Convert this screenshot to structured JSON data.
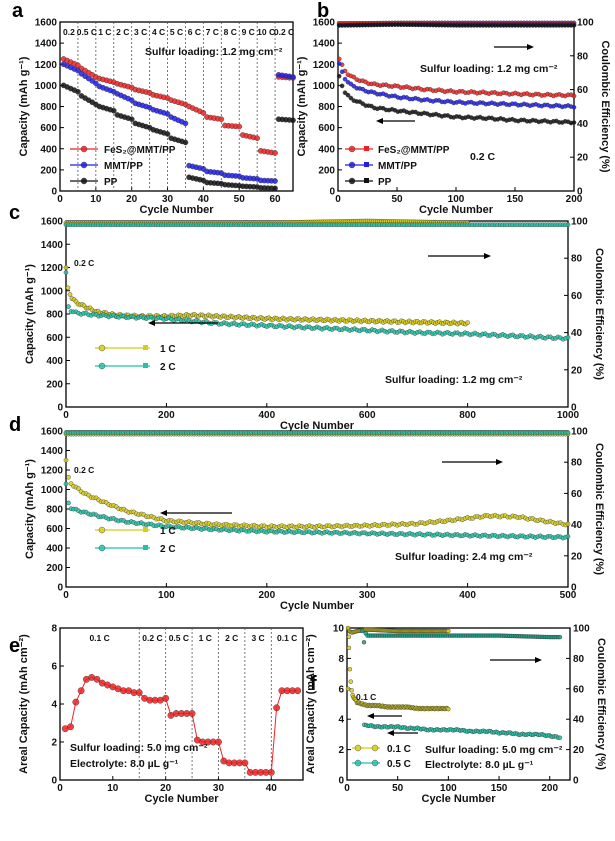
{
  "panels": {
    "a": {
      "label": "a",
      "xlabel": "Cycle Number",
      "ylabel": "Capacity (mAh g⁻¹)",
      "annotation": "Sulfur loading: 1.2 mg cm⁻²",
      "rates": [
        "0.2",
        "0.5 C",
        "1 C",
        "2 C",
        "3 C",
        "4 C",
        "5 C",
        "6 C",
        "7 C",
        "8 C",
        "9 C",
        "10 C",
        "0.2 C"
      ],
      "legend": [
        "FeS₂@MMT/PP",
        "MMT/PP",
        "PP"
      ]
    },
    "b": {
      "label": "b",
      "xlabel": "Cycle Number",
      "ylabel": "Capacity (mAh g⁻¹)",
      "ylabel2": "Coulombic Efficiency (%)",
      "annotation": "Sulfur loading: 1.2 mg cm⁻²",
      "annotation2": "0.2 C",
      "legend": [
        "FeS₂@MMT/PP",
        "MMT/PP",
        "PP"
      ]
    },
    "c": {
      "label": "c",
      "xlabel": "Cycle Number",
      "ylabel": "Capacity (mAh g⁻¹)",
      "ylabel2": "Coulombic Efficiency (%)",
      "annotation": "Sulfur loading: 1.2 mg cm⁻²",
      "annotation2": "0.2 C",
      "legend": [
        "1 C",
        "2 C"
      ]
    },
    "d": {
      "label": "d",
      "xlabel": "Cycle Number",
      "ylabel": "Capacity (mAh g⁻¹)",
      "ylabel2": "Coulombic Efficiency (%)",
      "annotation": "Sulfur loading: 2.4 mg cm⁻²",
      "annotation2": "0.2 C",
      "legend": [
        "1 C",
        "2 C"
      ]
    },
    "e": {
      "label": "e",
      "xlabel": "Cycle Number",
      "ylabel": "Areal Capacity (mAh cm⁻²)",
      "annotation": "Sulfur loading: 5.0 mg cm⁻²",
      "annotation2": "Electrolyte: 8.0 µL g⁻¹",
      "rates": [
        "0.1 C",
        "0.2 C",
        "0.5 C",
        "1 C",
        "2 C",
        "3 C",
        "0.1 C"
      ]
    },
    "f": {
      "label": "f",
      "xlabel": "Cycle Number",
      "ylabel": "Areal Capacity (mAh cm⁻²)",
      "ylabel2": "Coulombic Efficiency (%)",
      "annotation": "Sulfur loading: 5.0 mg cm⁻²",
      "annotation2": "Electrolyte: 8.0 µL g⁻¹",
      "annotation3": "0.1 C",
      "legend": [
        "0.1 C",
        "0.5 C"
      ]
    }
  },
  "colors": {
    "red": "#ee2222",
    "blue": "#1f1fe6",
    "black": "#111111",
    "yellow": "#d8cc1a",
    "teal": "#22c4a8",
    "tealdark": "#1a9e86"
  },
  "chart_data": [
    {
      "panel": "a",
      "type": "scatter",
      "xlim": [
        0,
        65
      ],
      "ylim": [
        0,
        1600
      ],
      "xticks": [
        0,
        10,
        20,
        30,
        40,
        50,
        60
      ],
      "yticks": [
        0,
        200,
        400,
        600,
        800,
        1000,
        1200,
        1400,
        1600
      ],
      "rate_boundaries": [
        5,
        10,
        15,
        20,
        25,
        30,
        35,
        40,
        45,
        50,
        55,
        60
      ],
      "series": [
        {
          "name": "FeS₂@MMT/PP",
          "color": "red",
          "segments": [
            [
              1250,
              1190
            ],
            [
              1160,
              1080
            ],
            [
              1065,
              1030
            ],
            [
              1015,
              980
            ],
            [
              960,
              930
            ],
            [
              910,
              880
            ],
            [
              860,
              820
            ],
            [
              800,
              740
            ],
            [
              700,
              680
            ],
            [
              620,
              610
            ],
            [
              530,
              500
            ],
            [
              380,
              360
            ],
            [
              1080,
              1070
            ]
          ]
        },
        {
          "name": "MMT/PP",
          "color": "blue",
          "segments": [
            [
              1200,
              1140
            ],
            [
              1110,
              1020
            ],
            [
              990,
              940
            ],
            [
              920,
              860
            ],
            [
              830,
              790
            ],
            [
              770,
              730
            ],
            [
              700,
              640
            ],
            [
              240,
              210
            ],
            [
              185,
              170
            ],
            [
              150,
              140
            ],
            [
              125,
              115
            ],
            [
              100,
              95
            ],
            [
              1100,
              1080
            ]
          ]
        },
        {
          "name": "PP",
          "color": "black",
          "segments": [
            [
              1000,
              940
            ],
            [
              900,
              820
            ],
            [
              800,
              760
            ],
            [
              720,
              680
            ],
            [
              640,
              600
            ],
            [
              580,
              540
            ],
            [
              500,
              460
            ],
            [
              130,
              100
            ],
            [
              80,
              70
            ],
            [
              60,
              50
            ],
            [
              45,
              38
            ],
            [
              30,
              25
            ],
            [
              680,
              670
            ]
          ]
        }
      ]
    },
    {
      "panel": "b",
      "type": "scatter",
      "xlim": [
        0,
        200
      ],
      "ylim": [
        0,
        1600
      ],
      "y2lim": [
        0,
        100
      ],
      "xticks": [
        0,
        50,
        100,
        150,
        200
      ],
      "yticks": [
        0,
        200,
        400,
        600,
        800,
        1000,
        1200,
        1400,
        1600
      ],
      "y2ticks": [
        0,
        20,
        40,
        60,
        80,
        100
      ],
      "series": [
        {
          "name": "FeS₂@MMT/PP",
          "color": "red",
          "x": [
            1,
            5,
            10,
            20,
            30,
            50,
            75,
            100,
            125,
            150,
            175,
            200
          ],
          "y": [
            1250,
            1150,
            1090,
            1040,
            1010,
            990,
            960,
            940,
            930,
            920,
            910,
            905
          ]
        },
        {
          "name": "MMT/PP",
          "color": "blue",
          "x": [
            1,
            5,
            10,
            20,
            30,
            50,
            75,
            100,
            125,
            150,
            175,
            200
          ],
          "y": [
            1200,
            1080,
            1010,
            960,
            930,
            890,
            860,
            840,
            830,
            820,
            810,
            800
          ]
        },
        {
          "name": "PP",
          "color": "black",
          "x": [
            1,
            5,
            10,
            20,
            30,
            50,
            75,
            100,
            125,
            150,
            175,
            200
          ],
          "y": [
            1080,
            950,
            880,
            830,
            790,
            760,
            730,
            700,
            690,
            670,
            660,
            650
          ]
        },
        {
          "name": "FeS₂@MMT/PP CE",
          "color": "red",
          "axis": "y2",
          "x": [
            1,
            50,
            100,
            150,
            200
          ],
          "y": [
            99,
            99.5,
            99.5,
            99.5,
            99.5
          ]
        },
        {
          "name": "MMT/PP CE",
          "color": "blue",
          "axis": "y2",
          "x": [
            1,
            50,
            100,
            150,
            200
          ],
          "y": [
            98,
            98.5,
            98.5,
            98.5,
            98.5
          ]
        },
        {
          "name": "PP CE",
          "color": "black",
          "axis": "y2",
          "x": [
            1,
            50,
            100,
            150,
            200
          ],
          "y": [
            98,
            98.5,
            98,
            98,
            98
          ]
        }
      ]
    },
    {
      "panel": "c",
      "type": "scatter",
      "xlim": [
        0,
        1000
      ],
      "ylim": [
        0,
        1600
      ],
      "y2lim": [
        0,
        100
      ],
      "xticks": [
        0,
        200,
        400,
        600,
        800,
        1000
      ],
      "yticks": [
        0,
        200,
        400,
        600,
        800,
        1000,
        1200,
        1400,
        1600
      ],
      "y2ticks": [
        0,
        20,
        40,
        60,
        80,
        100
      ],
      "series": [
        {
          "name": "1 C",
          "color": "yellow",
          "x": [
            0,
            2,
            5,
            10,
            20,
            40,
            60,
            100,
            150,
            200,
            250,
            300,
            400,
            500,
            600,
            700,
            800
          ],
          "y": [
            1200,
            1050,
            1000,
            950,
            900,
            860,
            820,
            790,
            780,
            780,
            790,
            780,
            760,
            750,
            740,
            730,
            720
          ]
        },
        {
          "name": "2 C",
          "color": "teal",
          "x": [
            0,
            2,
            5,
            10,
            20,
            40,
            60,
            100,
            150,
            200,
            250,
            300,
            400,
            500,
            600,
            700,
            800,
            900,
            1000
          ],
          "y": [
            1150,
            900,
            860,
            830,
            810,
            800,
            790,
            780,
            770,
            760,
            740,
            720,
            700,
            680,
            660,
            640,
            630,
            610,
            590
          ]
        },
        {
          "name": "1 C CE",
          "color": "yellow",
          "axis": "y2",
          "x": [
            0,
            200,
            400,
            600,
            800
          ],
          "y": [
            99,
            99,
            99,
            100,
            99
          ]
        },
        {
          "name": "2 C CE",
          "color": "teal",
          "axis": "y2",
          "x": [
            0,
            200,
            400,
            600,
            800,
            1000
          ],
          "y": [
            98,
            98,
            98,
            98,
            98,
            98
          ]
        }
      ]
    },
    {
      "panel": "d",
      "type": "scatter",
      "xlim": [
        0,
        500
      ],
      "ylim": [
        0,
        1600
      ],
      "y2lim": [
        0,
        100
      ],
      "xticks": [
        0,
        100,
        200,
        300,
        400,
        500
      ],
      "yticks": [
        0,
        200,
        400,
        600,
        800,
        1000,
        1200,
        1400,
        1600
      ],
      "y2ticks": [
        0,
        20,
        40,
        60,
        80,
        100
      ],
      "series": [
        {
          "name": "1 C",
          "color": "yellow",
          "x": [
            0,
            3,
            10,
            20,
            40,
            60,
            80,
            100,
            150,
            200,
            250,
            300,
            350,
            380,
            420,
            450,
            480,
            500
          ],
          "y": [
            1300,
            1080,
            1020,
            950,
            860,
            780,
            730,
            680,
            640,
            620,
            620,
            630,
            650,
            680,
            730,
            720,
            670,
            640
          ]
        },
        {
          "name": "2 C",
          "color": "teal",
          "x": [
            0,
            3,
            10,
            20,
            40,
            60,
            100,
            150,
            200,
            250,
            300,
            350,
            400,
            450,
            500
          ],
          "y": [
            1050,
            820,
            790,
            760,
            710,
            670,
            620,
            590,
            570,
            560,
            550,
            540,
            530,
            520,
            510
          ]
        },
        {
          "name": "1 C CE",
          "color": "yellow",
          "axis": "y2",
          "x": [
            0,
            100,
            200,
            300,
            400,
            500
          ],
          "y": [
            98,
            98,
            98,
            98,
            98,
            98
          ]
        },
        {
          "name": "2 C CE",
          "color": "teal",
          "axis": "y2",
          "x": [
            0,
            100,
            200,
            300,
            400,
            500
          ],
          "y": [
            99,
            99,
            99,
            99,
            99,
            99
          ]
        }
      ]
    },
    {
      "panel": "e",
      "type": "scatter",
      "xlim": [
        0,
        46
      ],
      "ylim": [
        0,
        8
      ],
      "xticks": [
        0,
        10,
        20,
        30,
        40
      ],
      "yticks": [
        0,
        2,
        4,
        6,
        8
      ],
      "rate_boundaries": [
        15,
        20,
        25,
        30,
        35,
        40
      ],
      "series": [
        {
          "name": "Areal capacity",
          "color": "red",
          "x": [
            1,
            2,
            3,
            4,
            5,
            6,
            7,
            8,
            9,
            10,
            11,
            12,
            13,
            14,
            15,
            16,
            17,
            18,
            19,
            20,
            21,
            22,
            23,
            24,
            25,
            26,
            27,
            28,
            29,
            30,
            31,
            32,
            33,
            34,
            35,
            36,
            37,
            38,
            39,
            40,
            41,
            42,
            43,
            44,
            45
          ],
          "y": [
            2.7,
            2.8,
            4.1,
            4.7,
            5.3,
            5.4,
            5.3,
            5.1,
            5.0,
            4.9,
            4.8,
            4.7,
            4.7,
            4.6,
            4.6,
            4.3,
            4.2,
            4.2,
            4.2,
            4.3,
            3.4,
            3.5,
            3.5,
            3.5,
            3.5,
            2.1,
            2.0,
            2.0,
            2.0,
            2.0,
            1.0,
            0.9,
            0.9,
            0.9,
            0.9,
            0.4,
            0.4,
            0.4,
            0.4,
            0.4,
            3.8,
            4.7,
            4.7,
            4.7,
            4.7
          ]
        }
      ]
    },
    {
      "panel": "f",
      "type": "scatter",
      "xlim": [
        0,
        220
      ],
      "ylim": [
        0,
        10
      ],
      "y2lim": [
        0,
        100
      ],
      "xticks": [
        0,
        50,
        100,
        150,
        200
      ],
      "yticks": [
        0,
        2,
        4,
        6,
        8,
        10
      ],
      "y2ticks": [
        0,
        20,
        40,
        60,
        80,
        100
      ],
      "series": [
        {
          "name": "0.1 C",
          "color": "yellow",
          "x": [
            1,
            3,
            5,
            8,
            10,
            15,
            20,
            30,
            40,
            50,
            60,
            70,
            80,
            90,
            100
          ],
          "y": [
            10,
            7,
            5.6,
            5.3,
            5.1,
            5.0,
            4.9,
            4.9,
            4.8,
            4.8,
            4.8,
            4.7,
            4.7,
            4.7,
            4.7
          ]
        },
        {
          "name": "0.5 C",
          "color": "teal",
          "x": [
            17,
            20,
            30,
            40,
            50,
            60,
            70,
            80,
            90,
            100,
            110,
            120,
            130,
            140,
            150,
            160,
            170,
            180,
            190,
            200,
            210
          ],
          "y": [
            3.6,
            3.6,
            3.5,
            3.5,
            3.5,
            3.4,
            3.4,
            3.3,
            3.3,
            3.3,
            3.3,
            3.2,
            3.2,
            3.2,
            3.1,
            3.1,
            3.0,
            3.0,
            3.0,
            2.9,
            2.8
          ]
        },
        {
          "name": "0.1 C CE",
          "color": "yellow",
          "axis": "y2",
          "x": [
            1,
            2,
            5,
            10,
            20,
            50,
            80,
            100
          ],
          "y": [
            60,
            98,
            97,
            98,
            99,
            98,
            98,
            98
          ]
        },
        {
          "name": "0.5 C CE",
          "color": "tealdark",
          "axis": "y2",
          "x": [
            15,
            16,
            17,
            18,
            20,
            50,
            100,
            150,
            200,
            210
          ],
          "y": [
            98,
            62,
            99,
            97,
            95,
            95,
            95,
            95,
            94,
            94
          ]
        }
      ]
    }
  ]
}
